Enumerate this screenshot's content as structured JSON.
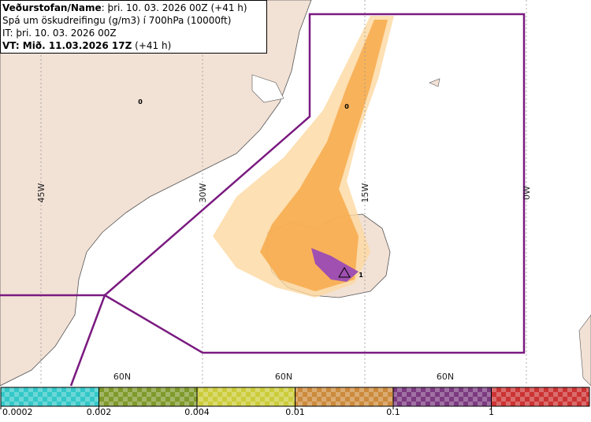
{
  "header": {
    "line1": {
      "bold": "Veðurstofan/Name",
      "rest": ": þri. 10. 03. 2026 00Z (+41 h)"
    },
    "line2": "Spá um öskudreifingu (g/m3) í 700hPa (10000ft)",
    "line3": "IT: þri. 10. 03. 2026 00Z",
    "line4": {
      "bold": "VT: Mið. 11.03.2026 17Z",
      "rest": " (+41 h)"
    }
  },
  "map": {
    "longitude_labels": [
      "45W",
      "30W",
      "15W",
      "0W"
    ],
    "latitude_labels": [
      "60N",
      "60N",
      "60N"
    ],
    "markers": [
      "0",
      "0",
      "1"
    ]
  },
  "legend": {
    "colors": [
      "#33c8c8",
      "#7f9a2c",
      "#cccc3a",
      "#cc8a3c",
      "#7c3a80",
      "#cc3333"
    ],
    "labels": [
      "0.0002",
      "0.002",
      "0.004",
      "0.01",
      "0.1",
      "1"
    ]
  }
}
